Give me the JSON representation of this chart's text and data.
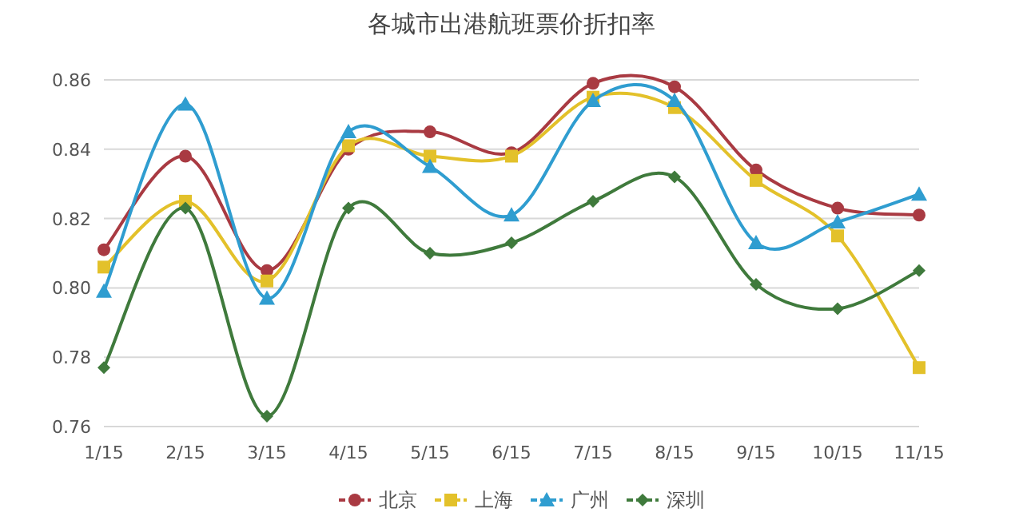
{
  "chart_data": {
    "type": "line",
    "title": "各城市出港航班票价折扣率",
    "categories": [
      "1/15",
      "2/15",
      "3/15",
      "4/15",
      "5/15",
      "6/15",
      "7/15",
      "8/15",
      "9/15",
      "10/15",
      "11/15"
    ],
    "series": [
      {
        "name": "北京",
        "color": "#a93a42",
        "marker": "circle",
        "values": [
          0.811,
          0.838,
          0.805,
          0.84,
          0.845,
          0.839,
          0.859,
          0.858,
          0.834,
          0.823,
          0.821
        ]
      },
      {
        "name": "上海",
        "color": "#e3c12a",
        "marker": "square",
        "values": [
          0.806,
          0.825,
          0.802,
          0.841,
          0.838,
          0.838,
          0.855,
          0.852,
          0.831,
          0.815,
          0.777
        ]
      },
      {
        "name": "广州",
        "color": "#2f9dd0",
        "marker": "triangle",
        "values": [
          0.799,
          0.853,
          0.797,
          0.845,
          0.835,
          0.821,
          0.854,
          0.854,
          0.813,
          0.819,
          0.827
        ]
      },
      {
        "name": "深圳",
        "color": "#3f7a3c",
        "marker": "diamond",
        "values": [
          0.777,
          0.823,
          0.763,
          0.823,
          0.81,
          0.813,
          0.825,
          0.832,
          0.801,
          0.794,
          0.805
        ]
      }
    ],
    "ylim": [
      0.76,
      0.86
    ],
    "yticks": [
      0.76,
      0.78,
      {
        "value": 0.8,
        "label": "0.80"
      },
      0.82,
      0.84,
      0.86
    ],
    "grid": "y",
    "legend": "bottom",
    "line_style": "solid"
  }
}
